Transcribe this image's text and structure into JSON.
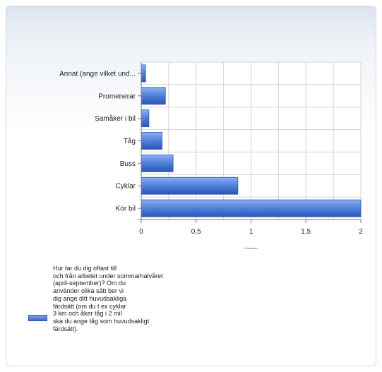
{
  "chart_data": {
    "type": "bar",
    "orientation": "horizontal",
    "categories": [
      "Annat (ange vilket und...",
      "Promenerar",
      "Samåker i bil",
      "Tåg",
      "Buss",
      "Cyklar",
      "Kör bil"
    ],
    "series": [
      {
        "name": "Hur tar du dig oftast till\noch från arbetet under sommarhalvåret\n(april-september)? Om du\nanvänder olika sätt ber vi\ndig ange ditt huvudsakliga\nfärdsätt (om du t ex cyklar\n3 km och åker tåg i 2 mil\nska du ange tåg som huvudsakligt\nfärdsätt).",
        "values": [
          0.04,
          0.22,
          0.07,
          0.19,
          0.29,
          0.88,
          2.0
        ]
      }
    ],
    "xticks": [
      "0",
      "0,5",
      "1",
      "1,5",
      "2"
    ],
    "xlim": [
      0,
      2
    ],
    "xlabel": "Svarstiden",
    "grid": true,
    "legend_position": "bottom-left",
    "colors": {
      "bar": "#4f7fdb",
      "bar_dark": "#2d56b5",
      "grid": "#d4d4d4",
      "axis": "#7a7a7a"
    }
  }
}
